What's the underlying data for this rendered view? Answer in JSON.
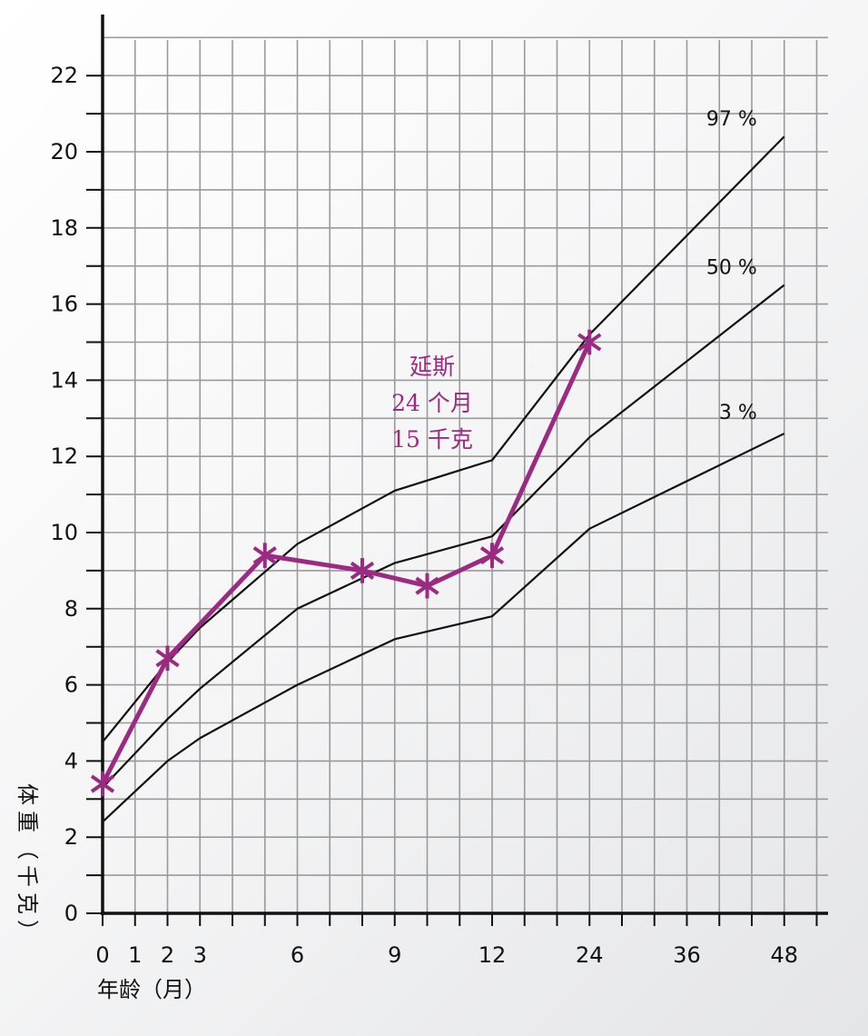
{
  "chart_data": {
    "type": "line",
    "xlabel": "年龄（月）",
    "ylabel": "体重（千克）",
    "x_ticks": [
      0,
      1,
      2,
      3,
      6,
      9,
      12,
      24,
      36,
      48
    ],
    "x_tick_labels": [
      "0",
      "1",
      "2",
      "3",
      "6",
      "9",
      "12",
      "24",
      "36",
      "48"
    ],
    "y_ticks": [
      0,
      2,
      4,
      6,
      8,
      10,
      12,
      14,
      16,
      18,
      20,
      22
    ],
    "ylim": [
      0,
      23
    ],
    "grid": true,
    "series": [
      {
        "name": "97 %",
        "x": [
          0,
          2,
          3,
          6,
          9,
          12,
          24,
          48
        ],
        "y": [
          4.5,
          6.6,
          7.5,
          9.7,
          11.1,
          11.9,
          15.2,
          20.4
        ]
      },
      {
        "name": "50 %",
        "x": [
          0,
          2,
          3,
          6,
          9,
          12,
          24,
          48
        ],
        "y": [
          3.3,
          5.1,
          5.9,
          8.0,
          9.2,
          9.9,
          12.5,
          16.5
        ]
      },
      {
        "name": "3 %",
        "x": [
          0,
          2,
          3,
          6,
          9,
          12,
          24,
          48
        ],
        "y": [
          2.4,
          4.0,
          4.6,
          6.0,
          7.2,
          7.8,
          10.1,
          12.6
        ]
      },
      {
        "name": "",
        "color": "#9b2b82",
        "x": [
          0,
          2,
          5,
          8,
          10,
          12,
          24
        ],
        "y": [
          3.4,
          6.7,
          9.4,
          9.0,
          8.6,
          9.4,
          15.0
        ]
      }
    ],
    "annotations": [
      {
        "lines": [
          "延斯",
          "24 个月",
          "15 千克"
        ],
        "color": "#9b2b82",
        "x": 24,
        "y": 15
      }
    ]
  }
}
